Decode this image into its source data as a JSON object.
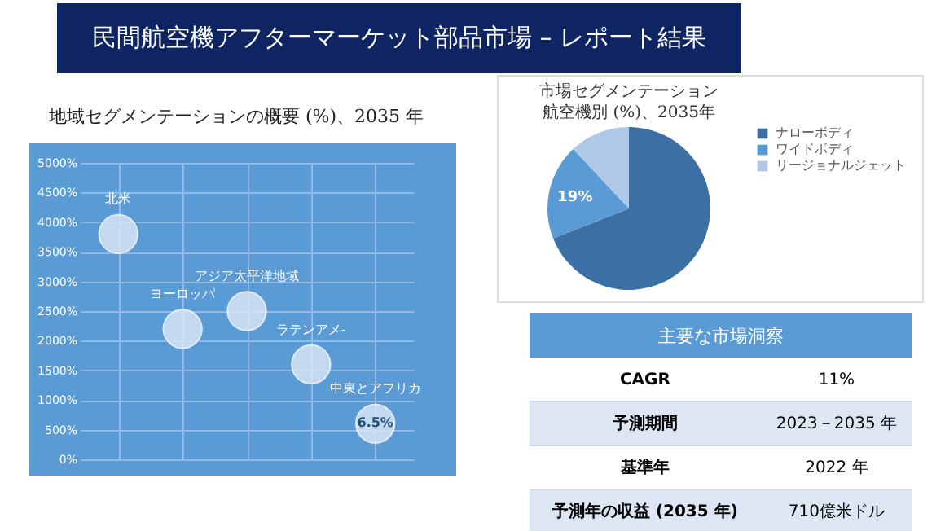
{
  "chart_data": [
    {
      "type": "scatter",
      "title": "民間航空機アフターマーケット部品市場 – レポート結果",
      "subtitle": "地域セグメンテーションの概要 (%)、2035 年",
      "categories": [
        "北米",
        "ヨーロッパ",
        "アジア太平洋地域",
        "ラテンアメ‐",
        "中東とアフリカ"
      ],
      "series": [
        {
          "color": "#dce9f7",
          "values": [
            3800,
            2200,
            2500,
            1600,
            600
          ]
        }
      ],
      "annotations": [
        {
          "text": "6.5%",
          "x": "中東とアフリカ",
          "y": 600
        }
      ],
      "ylim": [
        0,
        5000
      ],
      "yticks": [
        {
          "value": 0,
          "label": "0%"
        },
        {
          "value": 500,
          "label": "500%"
        },
        {
          "value": 1000,
          "label": "1000%"
        },
        {
          "value": 1500,
          "label": "1500%"
        },
        {
          "value": 2000,
          "label": "2000%"
        },
        {
          "value": 2500,
          "label": "2500%"
        },
        {
          "value": 3000,
          "label": "3000%"
        },
        {
          "value": 3500,
          "label": "3500%"
        },
        {
          "value": 4000,
          "label": "4000%"
        },
        {
          "value": 4500,
          "label": "4500%"
        },
        {
          "value": 5000,
          "label": "5000%"
        }
      ],
      "grid": true,
      "marker": "circle",
      "tick_labels": "y"
    },
    {
      "type": "pie",
      "title": "市場セグメンテーション",
      "subtitle": "航空機別 (%)、2035年",
      "categories": [
        "ナローボディ",
        "ワイドボディ",
        "リージョナルジェット"
      ],
      "values": [
        69,
        19,
        12
      ],
      "colors": [
        "#3c6fa3",
        "#5b9bd5",
        "#aec8e6"
      ],
      "value_labels": [
        null,
        "19%",
        null
      ],
      "legend": "right"
    },
    {
      "type": "other",
      "title": "主要な市場洞察",
      "annotations": [
        "CAGR",
        "11%",
        "予測期間",
        "2023－2035 年",
        "基準年",
        "2022 年",
        "予測年の収益 (2035 年)",
        "710億米ドル"
      ]
    }
  ]
}
